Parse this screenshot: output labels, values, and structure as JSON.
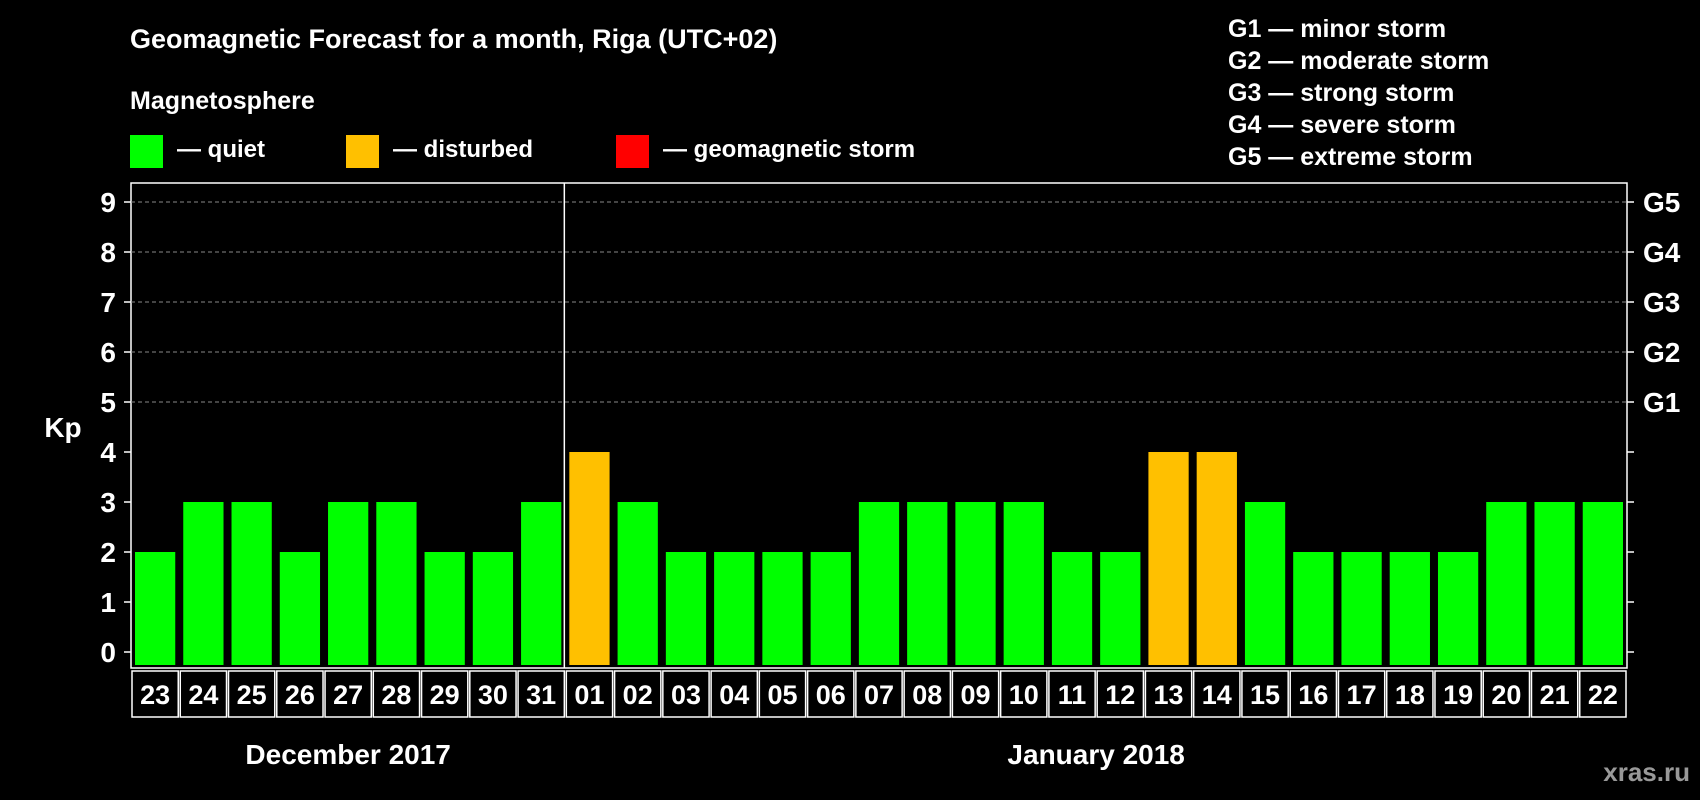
{
  "title": "Geomagnetic Forecast for a month, Riga (UTC+02)",
  "watermark": "xras.ru",
  "legend": {
    "heading": "Magnetosphere",
    "items": [
      {
        "label": "— quiet",
        "color": "#00ff00"
      },
      {
        "label": "— disturbed",
        "color": "#ffc000"
      },
      {
        "label": "— geomagnetic storm",
        "color": "#ff0000"
      }
    ]
  },
  "storm_scale": [
    "G1 — minor storm",
    "G2 — moderate storm",
    "G3 — strong storm",
    "G4 — severe storm",
    "G5 — extreme storm"
  ],
  "chart_data": {
    "type": "bar",
    "ylabel": "Kp",
    "ylim": [
      0,
      9
    ],
    "yticks": [
      "0",
      "1",
      "2",
      "3",
      "4",
      "5",
      "6",
      "7",
      "8",
      "9"
    ],
    "right_axis": [
      {
        "value": 5,
        "label": "G1"
      },
      {
        "value": 6,
        "label": "G2"
      },
      {
        "value": 7,
        "label": "G3"
      },
      {
        "value": 8,
        "label": "G4"
      },
      {
        "value": 9,
        "label": "G5"
      }
    ],
    "categories": [
      "23",
      "24",
      "25",
      "26",
      "27",
      "28",
      "29",
      "30",
      "31",
      "01",
      "02",
      "03",
      "04",
      "05",
      "06",
      "07",
      "08",
      "09",
      "10",
      "11",
      "12",
      "13",
      "14",
      "15",
      "16",
      "17",
      "18",
      "19",
      "20",
      "21",
      "22"
    ],
    "values": [
      2,
      3,
      3,
      2,
      3,
      3,
      2,
      2,
      3,
      4,
      3,
      2,
      2,
      2,
      2,
      3,
      3,
      3,
      3,
      2,
      2,
      4,
      4,
      3,
      2,
      2,
      2,
      2,
      3,
      3,
      3
    ],
    "status": [
      "quiet",
      "quiet",
      "quiet",
      "quiet",
      "quiet",
      "quiet",
      "quiet",
      "quiet",
      "quiet",
      "disturbed",
      "quiet",
      "quiet",
      "quiet",
      "quiet",
      "quiet",
      "quiet",
      "quiet",
      "quiet",
      "quiet",
      "quiet",
      "quiet",
      "disturbed",
      "disturbed",
      "quiet",
      "quiet",
      "quiet",
      "quiet",
      "quiet",
      "quiet",
      "quiet",
      "quiet"
    ],
    "status_colors": {
      "quiet": "#00ff00",
      "disturbed": "#ffc000",
      "storm": "#ff0000"
    },
    "months": [
      {
        "label": "December 2017",
        "first_index": 0,
        "last_index": 8
      },
      {
        "label": "January 2018",
        "first_index": 9,
        "last_index": 30
      }
    ],
    "gridlines": "dashed at 5-9"
  }
}
